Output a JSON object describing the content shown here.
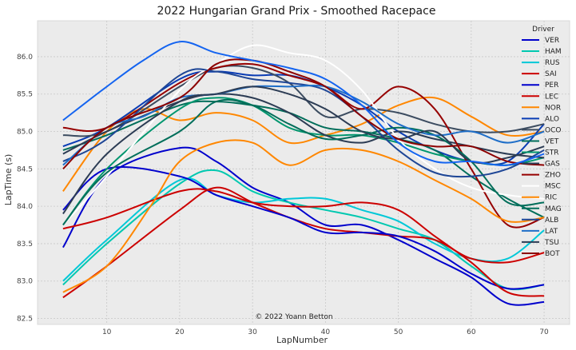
{
  "chart_data": {
    "type": "line",
    "title": "2022 Hungarian Grand Prix - Smoothed Racepace",
    "xlabel": "LapNumber",
    "ylabel": "LapTime (s)",
    "xlim": [
      0.5,
      73.5
    ],
    "ylim": [
      82.42,
      86.48
    ],
    "xticks": [
      10,
      20,
      30,
      40,
      50,
      60,
      70
    ],
    "yticks": [
      82.5,
      83.0,
      83.5,
      84.0,
      84.5,
      85.0,
      85.5,
      86.0
    ],
    "ytick_labels": [
      "82.5",
      "83.0",
      "83.5",
      "84.0",
      "84.5",
      "85.0",
      "85.5",
      "86.0"
    ],
    "grid": true,
    "legend_title": "Driver",
    "legend_position": "top-right",
    "annotation": "© 2022 Yoann Betton",
    "series": [
      {
        "name": "VER",
        "color": "#0000cc",
        "x": [
          4,
          10,
          20,
          25,
          30,
          35,
          40,
          45,
          50,
          55,
          60,
          65,
          70
        ],
        "y": [
          83.45,
          84.4,
          84.78,
          84.6,
          84.25,
          84.05,
          83.75,
          83.75,
          83.55,
          83.3,
          83.05,
          82.7,
          82.72
        ]
      },
      {
        "name": "HAM",
        "color": "#00c8b0",
        "x": [
          4,
          10,
          20,
          25,
          30,
          35,
          40,
          45,
          50,
          55,
          60,
          65,
          70
        ],
        "y": [
          82.95,
          83.5,
          84.3,
          84.48,
          84.2,
          84.05,
          83.95,
          83.85,
          83.7,
          83.55,
          83.2,
          82.9,
          82.95
        ]
      },
      {
        "name": "RUS",
        "color": "#00c8d8",
        "x": [
          4,
          10,
          20,
          25,
          30,
          35,
          40,
          45,
          50,
          55,
          60,
          65,
          70
        ],
        "y": [
          83.0,
          83.55,
          84.35,
          84.15,
          84.05,
          84.1,
          84.1,
          83.95,
          83.8,
          83.5,
          83.3,
          83.3,
          83.68
        ]
      },
      {
        "name": "SAI",
        "color": "#cc0000",
        "x": [
          4,
          10,
          20,
          25,
          30,
          35,
          40,
          45,
          50,
          55,
          60,
          65,
          70
        ],
        "y": [
          82.78,
          83.2,
          83.95,
          84.25,
          84.05,
          83.85,
          83.7,
          83.65,
          83.6,
          83.55,
          83.3,
          83.25,
          83.38
        ]
      },
      {
        "name": "PER",
        "color": "#0000cc",
        "x": [
          4,
          10,
          20,
          25,
          30,
          35,
          40,
          45,
          50,
          55,
          60,
          65,
          70
        ],
        "y": [
          83.95,
          84.5,
          84.4,
          84.15,
          84.0,
          83.85,
          83.65,
          83.65,
          83.6,
          83.4,
          83.1,
          82.9,
          82.95
        ]
      },
      {
        "name": "LEC",
        "color": "#cc0000",
        "x": [
          4,
          10,
          20,
          25,
          30,
          35,
          40,
          45,
          50,
          55,
          60,
          65,
          70
        ],
        "y": [
          83.7,
          83.85,
          84.2,
          84.2,
          84.05,
          84.0,
          84.0,
          84.05,
          83.95,
          83.6,
          83.25,
          82.85,
          82.8
        ]
      },
      {
        "name": "NOR",
        "color": "#ff8700",
        "x": [
          4,
          10,
          15,
          20,
          25,
          30,
          35,
          40,
          45,
          50,
          55,
          60,
          65,
          70
        ],
        "y": [
          84.2,
          85.0,
          85.3,
          85.15,
          85.25,
          85.15,
          84.85,
          84.95,
          85.1,
          85.35,
          85.45,
          85.2,
          84.95,
          85.0
        ]
      },
      {
        "name": "ALO",
        "color": "#0a3cb4",
        "x": [
          4,
          10,
          20,
          25,
          30,
          35,
          40,
          45,
          50,
          55,
          60,
          65,
          70
        ],
        "y": [
          84.8,
          85.05,
          85.7,
          85.8,
          85.75,
          85.75,
          85.6,
          85.35,
          85.0,
          84.75,
          84.6,
          84.6,
          85.1
        ]
      },
      {
        "name": "OCO",
        "color": "#3c4c60",
        "x": [
          4,
          10,
          20,
          25,
          30,
          35,
          40,
          45,
          50,
          55,
          60,
          65,
          70
        ],
        "y": [
          84.95,
          85.0,
          85.6,
          85.85,
          85.85,
          85.65,
          85.2,
          85.3,
          85.25,
          85.1,
          85.0,
          85.0,
          85.1
        ]
      },
      {
        "name": "VET",
        "color": "#006e5a",
        "x": [
          4,
          10,
          20,
          25,
          30,
          35,
          40,
          45,
          50,
          55,
          60,
          65,
          70
        ],
        "y": [
          84.75,
          84.95,
          85.35,
          85.4,
          85.35,
          85.25,
          85.05,
          85.0,
          84.9,
          84.75,
          84.4,
          84.1,
          83.85
        ]
      },
      {
        "name": "STR",
        "color": "#00966e",
        "x": [
          4,
          10,
          20,
          25,
          30,
          35,
          40,
          45,
          50,
          55,
          60,
          65,
          70
        ],
        "y": [
          83.75,
          84.5,
          85.3,
          85.45,
          85.35,
          85.05,
          84.95,
          84.95,
          84.85,
          84.7,
          84.6,
          84.55,
          84.65
        ]
      },
      {
        "name": "GAS",
        "color": "#2c3c54",
        "x": [
          4,
          10,
          20,
          25,
          30,
          35,
          40,
          45,
          50,
          55,
          60,
          65,
          70
        ],
        "y": [
          84.7,
          85.0,
          85.4,
          85.5,
          85.45,
          85.25,
          84.95,
          84.85,
          85.0,
          84.9,
          84.8,
          84.7,
          84.65
        ]
      },
      {
        "name": "ZHO",
        "color": "#960000",
        "x": [
          4,
          10,
          20,
          25,
          30,
          35,
          40,
          45,
          50,
          55,
          60,
          65,
          70
        ],
        "y": [
          85.05,
          85.05,
          85.65,
          85.85,
          85.9,
          85.75,
          85.6,
          85.3,
          85.6,
          85.3,
          84.5,
          83.75,
          83.85
        ]
      },
      {
        "name": "MSC",
        "color": "#ffffff",
        "x": [
          4,
          10,
          20,
          25,
          30,
          35,
          40,
          45,
          50,
          55,
          60,
          65,
          70
        ],
        "y": [
          83.75,
          84.4,
          85.55,
          85.9,
          86.15,
          86.05,
          85.95,
          85.55,
          84.9,
          84.5,
          84.25,
          84.15,
          84.1
        ]
      },
      {
        "name": "RIC",
        "color": "#ff8700",
        "x": [
          4,
          10,
          16,
          20,
          25,
          30,
          35,
          40,
          45,
          50,
          55,
          60,
          65,
          70
        ],
        "y": [
          82.85,
          83.2,
          84.0,
          84.6,
          84.85,
          84.85,
          84.55,
          84.75,
          84.75,
          84.6,
          84.35,
          84.1,
          83.8,
          83.85
        ]
      },
      {
        "name": "MAG",
        "color": "#006e5a",
        "x": [
          4,
          10,
          20,
          25,
          30,
          35,
          40,
          45,
          50,
          55,
          60,
          65,
          70
        ],
        "y": [
          83.75,
          84.45,
          85.0,
          85.4,
          85.35,
          85.1,
          84.9,
          84.95,
          85.05,
          84.95,
          84.6,
          84.05,
          84.05
        ]
      },
      {
        "name": "ALB",
        "color": "#1e4696",
        "x": [
          4,
          10,
          20,
          25,
          30,
          35,
          40,
          45,
          50,
          55,
          60,
          65,
          70
        ],
        "y": [
          84.6,
          84.9,
          85.75,
          85.8,
          85.7,
          85.65,
          85.55,
          85.2,
          84.75,
          84.45,
          84.4,
          84.5,
          84.75
        ]
      },
      {
        "name": "LAT",
        "color": "#1e6ec8",
        "x": [
          4,
          10,
          15,
          20,
          25,
          30,
          35,
          40,
          45,
          50,
          55,
          60,
          65,
          70
        ],
        "y": [
          84.55,
          85.05,
          85.2,
          85.45,
          85.5,
          85.6,
          85.6,
          85.6,
          85.4,
          85.1,
          84.95,
          85.0,
          84.85,
          85.0
        ]
      },
      {
        "name": "TSU",
        "color": "#2c3c54",
        "x": [
          4,
          10,
          20,
          25,
          30,
          35,
          40,
          45,
          50,
          55,
          60,
          65,
          70
        ],
        "y": [
          83.9,
          84.7,
          85.4,
          85.5,
          85.6,
          85.5,
          85.3,
          85.0,
          84.9,
          85.0,
          84.6,
          84.65,
          84.8
        ]
      },
      {
        "name": "BOT",
        "color": "#8c0000",
        "x": [
          4,
          10,
          20,
          25,
          30,
          35,
          40,
          45,
          50,
          55,
          60,
          65,
          70
        ],
        "y": [
          84.5,
          85.05,
          85.45,
          85.9,
          85.95,
          85.8,
          85.6,
          85.2,
          84.9,
          84.8,
          84.8,
          84.6,
          84.55
        ]
      },
      {
        "name": "",
        "color": "#1464f0",
        "x": [
          4,
          10,
          15,
          20,
          25,
          30,
          35,
          40,
          45,
          50,
          55,
          60,
          65,
          70
        ],
        "y": [
          85.15,
          85.6,
          85.95,
          86.2,
          86.05,
          85.95,
          85.85,
          85.7,
          85.35,
          84.85,
          84.6,
          84.6,
          84.55,
          84.7
        ]
      }
    ]
  }
}
